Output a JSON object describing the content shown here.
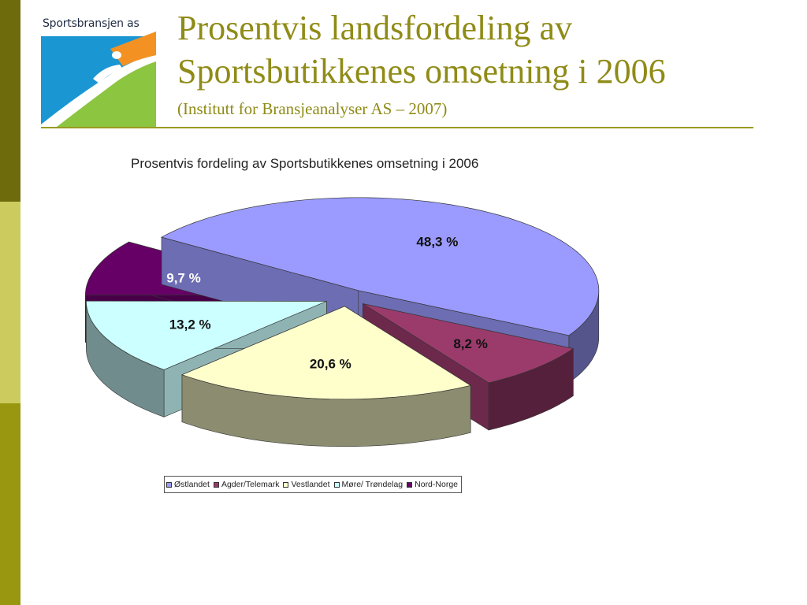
{
  "slide": {
    "title": "Prosentvis landsfordeling av Sportsbutikkenes omsetning i 2006",
    "subtitle": "(Institutt for Bransjeanalyser AS – 2007)",
    "logo_text": "Sportsbransjen as",
    "colors": {
      "title": "#8f8b17",
      "sidebar_dark": "#6e6b0d",
      "sidebar_light": "#cccb5e",
      "sidebar_mid": "#99960f",
      "logo_blue": "#1a96d2",
      "logo_orange": "#f39223",
      "logo_green": "#8cc540"
    }
  },
  "chart_data": {
    "type": "pie",
    "style": "3d-exploded",
    "title": "Prosentvis fordeling av Sportsbutikkenes omsetning i 2006",
    "series": [
      {
        "name": "Østlandet",
        "value": 48.3,
        "label": "48,3 %",
        "color": "#9b9bff"
      },
      {
        "name": "Agder/Telemark",
        "value": 8.2,
        "label": "8,2 %",
        "color": "#9b3b6c"
      },
      {
        "name": "Vestlandet",
        "value": 20.6,
        "label": "20,6 %",
        "color": "#ffffcc"
      },
      {
        "name": "Møre/ Trøndelag",
        "value": 13.2,
        "label": "13,2 %",
        "color": "#ccffff"
      },
      {
        "name": "Nord-Norge",
        "value": 9.7,
        "label": "9,7 %",
        "color": "#660066"
      }
    ],
    "legend_position": "bottom"
  }
}
